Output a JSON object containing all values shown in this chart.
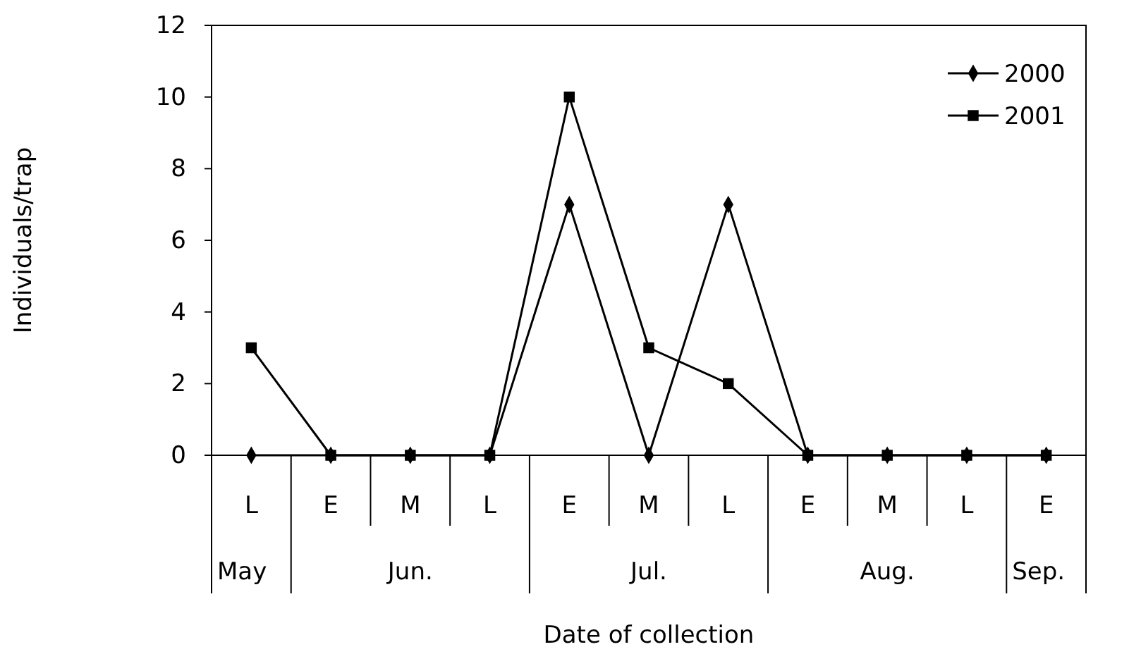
{
  "chart_data": {
    "type": "line",
    "xlabel": "Date of collection",
    "ylabel": "Individuals/trap",
    "categories": [
      "L",
      "E",
      "M",
      "L",
      "E",
      "M",
      "L",
      "E",
      "M",
      "L",
      "E"
    ],
    "series": [
      {
        "name": "2000",
        "color": "#000000",
        "marker": "diamond",
        "values": [
          0,
          0,
          0,
          0,
          7,
          0,
          7,
          0,
          0,
          0,
          0
        ]
      },
      {
        "name": "2001",
        "color": "#000000",
        "marker": "square",
        "values": [
          3,
          0,
          0,
          0,
          10,
          3,
          2,
          0,
          0,
          0,
          0
        ]
      }
    ],
    "ylim": [
      0,
      12
    ],
    "yticks": [
      0,
      2,
      4,
      6,
      8,
      10,
      12
    ],
    "legend": "top right",
    "grid": false,
    "annotations": [
      "May",
      "Jun.",
      "Jul.",
      "Aug.",
      "Sep."
    ]
  }
}
